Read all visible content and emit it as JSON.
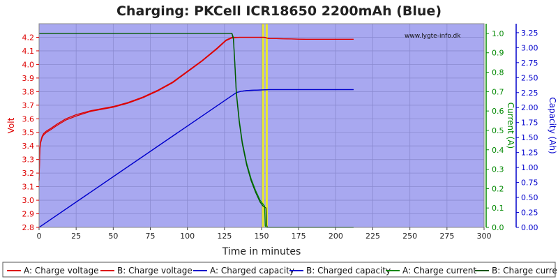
{
  "chart_data": {
    "type": "line",
    "title": "Charging: PKCell ICR18650 2200mAh (Blue)",
    "watermark": "www.lygte-info.dk",
    "xlabel": "Time in minutes",
    "xlim": [
      0,
      300
    ],
    "xticks": [
      "0",
      "25",
      "50",
      "75",
      "100",
      "125",
      "150",
      "175",
      "200",
      "225",
      "250",
      "275",
      "300"
    ],
    "y_left": {
      "label": "Volt",
      "color": "#dd0000",
      "lim": [
        2.8,
        4.3
      ],
      "ticks": [
        "2.8",
        "2.9",
        "3.0",
        "3.1",
        "3.2",
        "3.3",
        "3.4",
        "3.5",
        "3.6",
        "3.7",
        "3.8",
        "3.9",
        "4.0",
        "4.1",
        "4.2"
      ]
    },
    "y_current": {
      "label": "Current (A)",
      "color": "#008800",
      "lim": [
        0,
        1.05
      ],
      "ticks": [
        "0.0",
        "0.1",
        "0.2",
        "0.3",
        "0.4",
        "0.5",
        "0.6",
        "0.7",
        "0.8",
        "0.9",
        "1.0"
      ]
    },
    "y_capacity": {
      "label": "Capacity (Ah)",
      "color": "#0000cc",
      "lim": [
        0,
        3.4
      ],
      "ticks": [
        "0.00",
        "0.25",
        "0.50",
        "0.75",
        "1.00",
        "1.25",
        "1.50",
        "1.75",
        "2.00",
        "2.25",
        "2.50",
        "2.75",
        "3.00",
        "3.25"
      ]
    },
    "grid": true,
    "plot_background": "#a8a8f0",
    "markers": [
      {
        "x": 151,
        "color": "#e8e830"
      },
      {
        "x": 153.5,
        "color": "#e8e830"
      }
    ],
    "series": [
      {
        "name": "A: Charge voltage",
        "axis": "volt",
        "color": "#dd0000",
        "x": [
          0,
          0.5,
          1,
          2,
          3,
          5,
          8,
          12,
          18,
          25,
          35,
          50,
          60,
          70,
          80,
          90,
          100,
          110,
          120,
          126,
          130,
          135,
          140,
          145,
          150,
          152,
          155,
          160,
          180,
          200,
          212
        ],
        "y": [
          3.15,
          3.38,
          3.43,
          3.47,
          3.49,
          3.51,
          3.53,
          3.56,
          3.6,
          3.63,
          3.66,
          3.69,
          3.72,
          3.76,
          3.81,
          3.87,
          3.95,
          4.03,
          4.12,
          4.18,
          4.2,
          4.2,
          4.2,
          4.2,
          4.2,
          4.2,
          4.19,
          4.19,
          4.185,
          4.185,
          4.185
        ]
      },
      {
        "name": "B: Charge voltage",
        "axis": "volt",
        "color": "#dd0000",
        "x": [
          0,
          0.5,
          1,
          2,
          3,
          5,
          8,
          12,
          18,
          25,
          35,
          50,
          60,
          70,
          80,
          90,
          100,
          110,
          120,
          126,
          130,
          135,
          140,
          145,
          150,
          152,
          155,
          160,
          180,
          200,
          212
        ],
        "y": [
          3.14,
          3.37,
          3.42,
          3.46,
          3.48,
          3.5,
          3.52,
          3.55,
          3.59,
          3.62,
          3.655,
          3.685,
          3.715,
          3.755,
          3.805,
          3.865,
          3.945,
          4.025,
          4.115,
          4.175,
          4.195,
          4.2,
          4.2,
          4.2,
          4.2,
          4.2,
          4.19,
          4.19,
          4.185,
          4.185,
          4.185
        ]
      },
      {
        "name": "A: Charged capacity",
        "axis": "capacity",
        "color": "#0000cc",
        "x": [
          0,
          130,
          133,
          136,
          140,
          145,
          150,
          155,
          212
        ],
        "y": [
          0,
          2.2,
          2.25,
          2.27,
          2.285,
          2.29,
          2.295,
          2.3,
          2.3
        ]
      },
      {
        "name": "B: Charged capacity",
        "axis": "capacity",
        "color": "#0000cc",
        "x": [
          0,
          130,
          133,
          136,
          140,
          145,
          150,
          155,
          212
        ],
        "y": [
          0,
          2.2,
          2.25,
          2.27,
          2.285,
          2.29,
          2.294,
          2.3,
          2.3
        ]
      },
      {
        "name": "A: Charge current",
        "axis": "current",
        "color": "#008800",
        "x": [
          0,
          130,
          131,
          132,
          133,
          135,
          137,
          140,
          143,
          146,
          149,
          151,
          152,
          152.5,
          153,
          212
        ],
        "y": [
          1.0,
          1.0,
          0.98,
          0.85,
          0.7,
          0.55,
          0.44,
          0.33,
          0.25,
          0.19,
          0.14,
          0.12,
          0.11,
          0.01,
          0.0,
          0.0
        ]
      },
      {
        "name": "B: Charge current",
        "axis": "current",
        "color": "#005500",
        "x": [
          0,
          130,
          131,
          132,
          133,
          135,
          137,
          140,
          143,
          146,
          149,
          151,
          153,
          153.5,
          154,
          212
        ],
        "y": [
          1.0,
          1.0,
          0.97,
          0.84,
          0.69,
          0.54,
          0.43,
          0.32,
          0.24,
          0.18,
          0.13,
          0.11,
          0.1,
          0.01,
          0.0,
          0.0
        ]
      }
    ],
    "legend": {
      "placement": "bottom",
      "entries": [
        {
          "label": "A: Charge voltage",
          "color": "#dd0000"
        },
        {
          "label": "B: Charge voltage",
          "color": "#dd0000"
        },
        {
          "label": "A: Charged capacity",
          "color": "#0000cc"
        },
        {
          "label": "B: Charged capacity",
          "color": "#0000cc"
        },
        {
          "label": "A: Charge current",
          "color": "#008800"
        },
        {
          "label": "B: Charge current",
          "color": "#005500"
        }
      ]
    }
  }
}
